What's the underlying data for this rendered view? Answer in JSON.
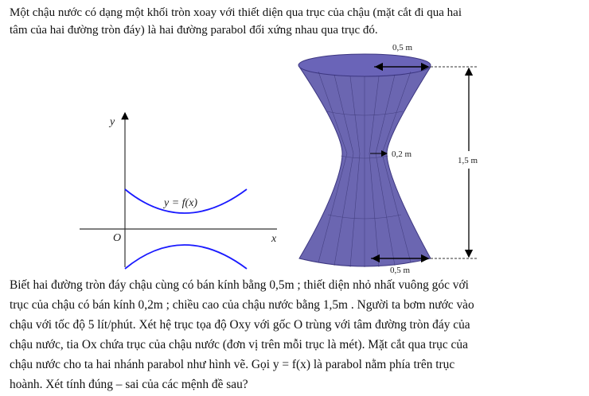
{
  "intro": [
    "Một chậu nước có dạng một khối tròn xoay với thiết diện qua trục của chậu (mặt cắt đi qua hai",
    "tâm của hai đường tròn đáy) là hai đường parabol đối xứng nhau qua trục đó."
  ],
  "graph": {
    "y_axis": "y",
    "x_axis": "x",
    "origin": "O",
    "curve_label": "y = f(x)",
    "curve_color": "#1a1aff"
  },
  "basin": {
    "top_radius": "0,5 m",
    "waist_radius": "0,2 m",
    "height": "1,5 m",
    "bottom_radius": "0,5 m",
    "color": "#5b55a8"
  },
  "body": [
    "Biết hai đường tròn đáy chậu cùng có bán kính bằng 0,5m ; thiết diện nhỏ nhất vuông góc với",
    "trục của chậu có bán kính 0,2m ; chiều cao của chậu nước bằng 1,5m . Người ta bơm nước vào",
    "chậu với tốc độ 5 lít/phút. Xét hệ trục tọa độ Oxy với gốc O trùng với tâm đường tròn đáy của",
    "chậu nước, tia Ox chứa trục của chậu nước (đơn vị trên mỗi trục là mét). Mặt cắt qua trục của",
    "chậu nước cho ta hai nhánh parabol như hình vẽ. Gọi y = f(x) là parabol nằm phía trên trục",
    "hoành. Xét tính đúng – sai của các mệnh đề sau?"
  ]
}
